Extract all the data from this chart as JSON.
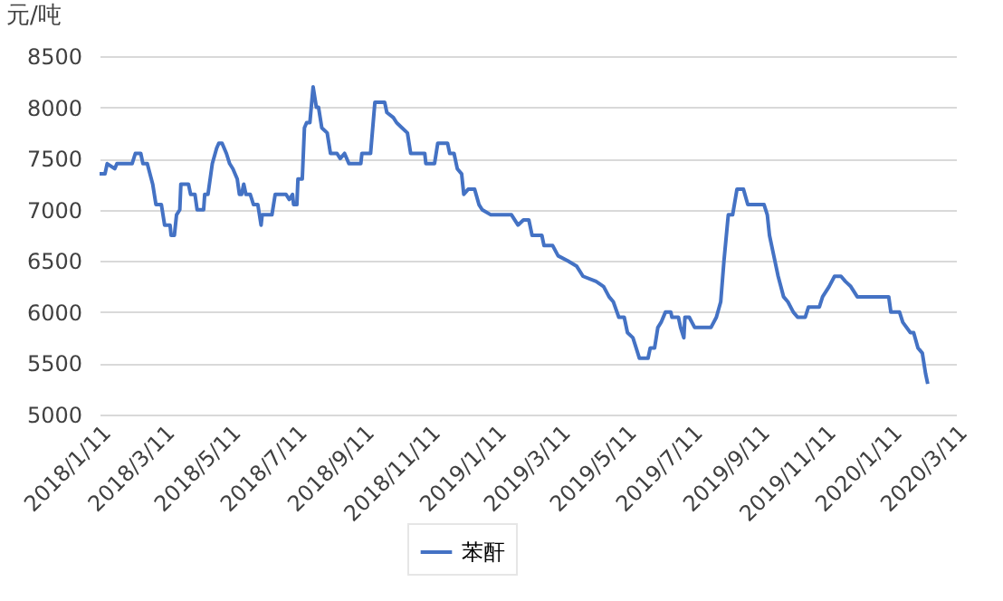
{
  "chart_data": {
    "type": "line",
    "ylabel": "元/吨",
    "xlim": [
      "2018-01-11",
      "2020-03-11"
    ],
    "xticks": [
      {
        "value": "2018-01-11",
        "label": "2018/1/11"
      },
      {
        "value": "2018-03-11",
        "label": "2018/3/11"
      },
      {
        "value": "2018-05-11",
        "label": "2018/5/11"
      },
      {
        "value": "2018-07-11",
        "label": "2018/7/11"
      },
      {
        "value": "2018-09-11",
        "label": "2018/9/11"
      },
      {
        "value": "2018-11-11",
        "label": "2018/11/11"
      },
      {
        "value": "2019-01-11",
        "label": "2019/1/11"
      },
      {
        "value": "2019-03-11",
        "label": "2019/3/11"
      },
      {
        "value": "2019-05-11",
        "label": "2019/5/11"
      },
      {
        "value": "2019-07-11",
        "label": "2019/7/11"
      },
      {
        "value": "2019-09-11",
        "label": "2019/9/11"
      },
      {
        "value": "2019-11-11",
        "label": "2019/11/11"
      },
      {
        "value": "2020-01-11",
        "label": "2020/1/11"
      },
      {
        "value": "2020-03-11",
        "label": "2020/3/11"
      }
    ],
    "ylim": [
      5000,
      8500
    ],
    "yticks": [
      5000,
      5500,
      6000,
      6500,
      7000,
      7500,
      8000,
      8500
    ],
    "grid": "y",
    "legend": "bottom",
    "marker": "none",
    "line_style": "solid",
    "x": [
      "2018-01-11",
      "2018-01-16",
      "2018-01-18",
      "2018-01-25",
      "2018-01-27",
      "2018-02-10",
      "2018-02-13",
      "2018-02-18",
      "2018-02-20",
      "2018-02-24",
      "2018-03-01",
      "2018-03-04",
      "2018-03-09",
      "2018-03-12",
      "2018-03-17",
      "2018-03-18",
      "2018-03-21",
      "2018-03-23",
      "2018-03-26",
      "2018-03-27",
      "2018-04-03",
      "2018-04-05",
      "2018-04-09",
      "2018-04-11",
      "2018-04-17",
      "2018-04-18",
      "2018-04-21",
      "2018-04-25",
      "2018-04-29",
      "2018-05-01",
      "2018-05-04",
      "2018-05-08",
      "2018-05-11",
      "2018-05-14",
      "2018-05-18",
      "2018-05-20",
      "2018-05-22",
      "2018-05-24",
      "2018-05-26",
      "2018-05-30",
      "2018-06-02",
      "2018-06-06",
      "2018-06-09",
      "2018-06-10",
      "2018-06-19",
      "2018-06-22",
      "2018-07-02",
      "2018-07-05",
      "2018-07-08",
      "2018-07-09",
      "2018-07-12",
      "2018-07-13",
      "2018-07-17",
      "2018-07-19",
      "2018-07-21",
      "2018-07-24",
      "2018-07-27",
      "2018-07-30",
      "2018-08-01",
      "2018-08-04",
      "2018-08-09",
      "2018-08-12",
      "2018-08-18",
      "2018-08-21",
      "2018-08-25",
      "2018-08-29",
      "2018-09-09",
      "2018-09-10",
      "2018-09-18",
      "2018-09-22",
      "2018-10-01",
      "2018-10-03",
      "2018-10-09",
      "2018-10-12",
      "2018-10-17",
      "2018-10-22",
      "2018-10-25",
      "2018-11-07",
      "2018-11-08",
      "2018-11-16",
      "2018-11-19",
      "2018-11-28",
      "2018-11-30",
      "2018-12-04",
      "2018-12-07",
      "2018-12-11",
      "2018-12-13",
      "2018-12-17",
      "2018-12-23",
      "2018-12-27",
      "2018-12-30",
      "2019-01-07",
      "2019-01-26",
      "2019-02-01",
      "2019-02-06",
      "2019-02-11",
      "2019-02-14",
      "2019-02-23",
      "2019-02-25",
      "2019-03-05",
      "2019-03-10",
      "2019-03-19",
      "2019-03-27",
      "2019-04-02",
      "2019-04-14",
      "2019-04-21",
      "2019-04-26",
      "2019-04-30",
      "2019-05-05",
      "2019-05-10",
      "2019-05-13",
      "2019-05-18",
      "2019-05-21",
      "2019-05-24",
      "2019-06-01",
      "2019-06-03",
      "2019-06-07",
      "2019-06-10",
      "2019-06-13",
      "2019-06-17",
      "2019-06-22",
      "2019-06-23",
      "2019-06-29",
      "2019-07-01",
      "2019-07-04",
      "2019-07-05",
      "2019-07-09",
      "2019-07-14",
      "2019-07-29",
      "2019-08-03",
      "2019-08-07",
      "2019-08-10",
      "2019-08-14",
      "2019-08-18",
      "2019-08-22",
      "2019-08-28",
      "2019-09-01",
      "2019-09-16",
      "2019-09-19",
      "2019-09-21",
      "2019-09-25",
      "2019-09-29",
      "2019-10-04",
      "2019-10-08",
      "2019-10-13",
      "2019-10-17",
      "2019-10-24",
      "2019-10-27",
      "2019-11-06",
      "2019-11-09",
      "2019-11-15",
      "2019-11-20",
      "2019-11-26",
      "2019-11-30",
      "2019-12-05",
      "2019-12-11",
      "2019-12-15",
      "2020-01-09",
      "2020-01-11",
      "2020-01-19",
      "2020-01-22",
      "2020-01-29",
      "2020-02-01",
      "2020-02-05",
      "2020-02-09",
      "2020-02-12",
      "2020-02-14"
    ],
    "series": [
      {
        "name": "苯酐",
        "color": "#4472c4",
        "values": [
          7350,
          7350,
          7450,
          7400,
          7450,
          7450,
          7550,
          7550,
          7450,
          7450,
          7250,
          7050,
          7050,
          6850,
          6850,
          6750,
          6750,
          6950,
          7000,
          7250,
          7250,
          7150,
          7150,
          7000,
          7000,
          7150,
          7150,
          7450,
          7600,
          7650,
          7650,
          7550,
          7450,
          7400,
          7300,
          7150,
          7150,
          7250,
          7150,
          7150,
          7050,
          7050,
          6850,
          6950,
          6950,
          7150,
          7150,
          7100,
          7150,
          7050,
          7050,
          7300,
          7300,
          7800,
          7850,
          7850,
          8200,
          8000,
          8000,
          7800,
          7750,
          7550,
          7550,
          7500,
          7550,
          7450,
          7450,
          7550,
          7550,
          8050,
          8050,
          7950,
          7900,
          7850,
          7800,
          7750,
          7550,
          7550,
          7450,
          7450,
          7650,
          7650,
          7550,
          7550,
          7400,
          7350,
          7150,
          7200,
          7200,
          7050,
          7000,
          6950,
          6950,
          6850,
          6900,
          6900,
          6750,
          6750,
          6650,
          6650,
          6550,
          6500,
          6450,
          6350,
          6300,
          6250,
          6150,
          6100,
          5950,
          5950,
          5800,
          5750,
          5650,
          5550,
          5550,
          5650,
          5650,
          5850,
          5900,
          6000,
          6000,
          5950,
          5950,
          5850,
          5750,
          5950,
          5950,
          5850,
          5850,
          5950,
          6100,
          6500,
          6950,
          6950,
          7200,
          7200,
          7050,
          7050,
          6950,
          6750,
          6550,
          6350,
          6150,
          6100,
          6000,
          5950,
          5950,
          6050,
          6050,
          6150,
          6250,
          6350,
          6350,
          6300,
          6250,
          6150,
          6150,
          6150,
          6000,
          6000,
          5900,
          5800,
          5800,
          5650,
          5600,
          5400,
          5300
        ]
      }
    ]
  }
}
